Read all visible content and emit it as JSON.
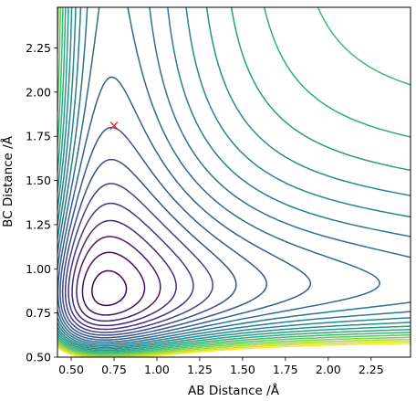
{
  "chart_data": {
    "type": "contour",
    "xlabel": "AB Distance /Å",
    "ylabel": "BC Distance /Å",
    "xlim": [
      0.42,
      2.48
    ],
    "ylim": [
      0.5,
      2.48
    ],
    "xticks": [
      "0.50",
      "0.75",
      "1.00",
      "1.25",
      "1.50",
      "1.75",
      "2.00",
      "2.25"
    ],
    "yticks": [
      "0.50",
      "0.75",
      "1.00",
      "1.25",
      "1.50",
      "1.75",
      "2.00",
      "2.25"
    ],
    "colormap": "viridis",
    "level_count": 22,
    "marker": {
      "x": 0.75,
      "y": 1.81,
      "symbol": "x",
      "color": "#e8231f"
    }
  }
}
